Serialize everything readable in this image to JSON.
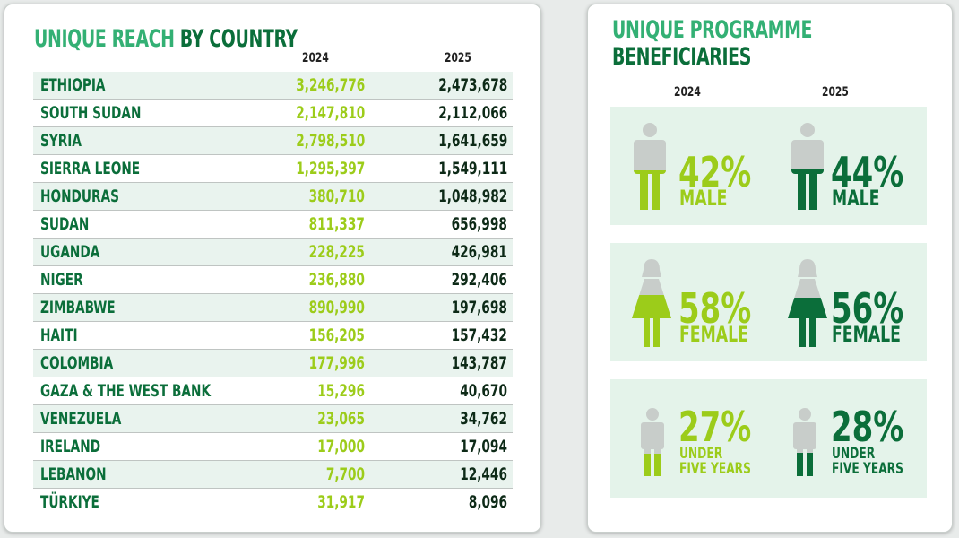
{
  "colors": {
    "accent_light": "#33b074",
    "accent_dark": "#0b6e3a",
    "value_2024": "#9ccc1a",
    "value_2025": "#0d2a17",
    "silhouette_grey": "#c8cdca"
  },
  "left_panel": {
    "title_part1": "UNIQUE REACH",
    "title_part2": "BY COUNTRY",
    "col_2024": "2024",
    "col_2025": "2025"
  },
  "right_panel": {
    "title_line1": "UNIQUE PROGRAMME",
    "title_line2": "BENEFICIARIES",
    "col_2024": "2024",
    "col_2025": "2025",
    "stats": [
      {
        "label": "MALE",
        "pct_2024": "42%",
        "pct_2025": "44%",
        "icon": "male-figure-icon"
      },
      {
        "label": "FEMALE",
        "pct_2024": "58%",
        "pct_2025": "56%",
        "icon": "female-figure-icon"
      },
      {
        "label_line1": "UNDER",
        "label_line2": "FIVE YEARS",
        "pct_2024": "27%",
        "pct_2025": "28%",
        "icon": "child-figure-icon"
      }
    ]
  },
  "chart_data": [
    {
      "type": "table",
      "title": "UNIQUE REACH BY COUNTRY",
      "columns": [
        "",
        "2024",
        "2025"
      ],
      "rows": [
        {
          "country": "ETHIOPIA",
          "v2024": "3,246,776",
          "v2025": "2,473,678"
        },
        {
          "country": "SOUTH SUDAN",
          "v2024": "2,147,810",
          "v2025": "2,112,066"
        },
        {
          "country": "SYRIA",
          "v2024": "2,798,510",
          "v2025": "1,641,659"
        },
        {
          "country": "SIERRA LEONE",
          "v2024": "1,295,397",
          "v2025": "1,549,111"
        },
        {
          "country": "HONDURAS",
          "v2024": "380,710",
          "v2025": "1,048,982"
        },
        {
          "country": "SUDAN",
          "v2024": "811,337",
          "v2025": "656,998"
        },
        {
          "country": "UGANDA",
          "v2024": "228,225",
          "v2025": "426,981"
        },
        {
          "country": "NIGER",
          "v2024": "236,880",
          "v2025": "292,406"
        },
        {
          "country": "ZIMBABWE",
          "v2024": "890,990",
          "v2025": "197,698"
        },
        {
          "country": "HAITI",
          "v2024": "156,205",
          "v2025": "157,432"
        },
        {
          "country": "COLOMBIA",
          "v2024": "177,996",
          "v2025": "143,787"
        },
        {
          "country": "GAZA & THE WEST BANK",
          "v2024": "15,296",
          "v2025": "40,670"
        },
        {
          "country": "VENEZUELA",
          "v2024": "23,065",
          "v2025": "34,762"
        },
        {
          "country": "IRELAND",
          "v2024": "17,000",
          "v2025": "17,094"
        },
        {
          "country": "LEBANON",
          "v2024": "7,700",
          "v2025": "12,446"
        },
        {
          "country": "TÜRKIYE",
          "v2024": "31,917",
          "v2025": "8,096"
        }
      ]
    },
    {
      "type": "table",
      "title": "UNIQUE PROGRAMME BENEFICIARIES",
      "columns": [
        "",
        "2024",
        "2025"
      ],
      "rows": [
        {
          "group": "MALE",
          "v2024": 42,
          "v2025": 44
        },
        {
          "group": "FEMALE",
          "v2024": 58,
          "v2025": 56
        },
        {
          "group": "UNDER FIVE YEARS",
          "v2024": 27,
          "v2025": 28
        }
      ],
      "unit": "%"
    }
  ]
}
